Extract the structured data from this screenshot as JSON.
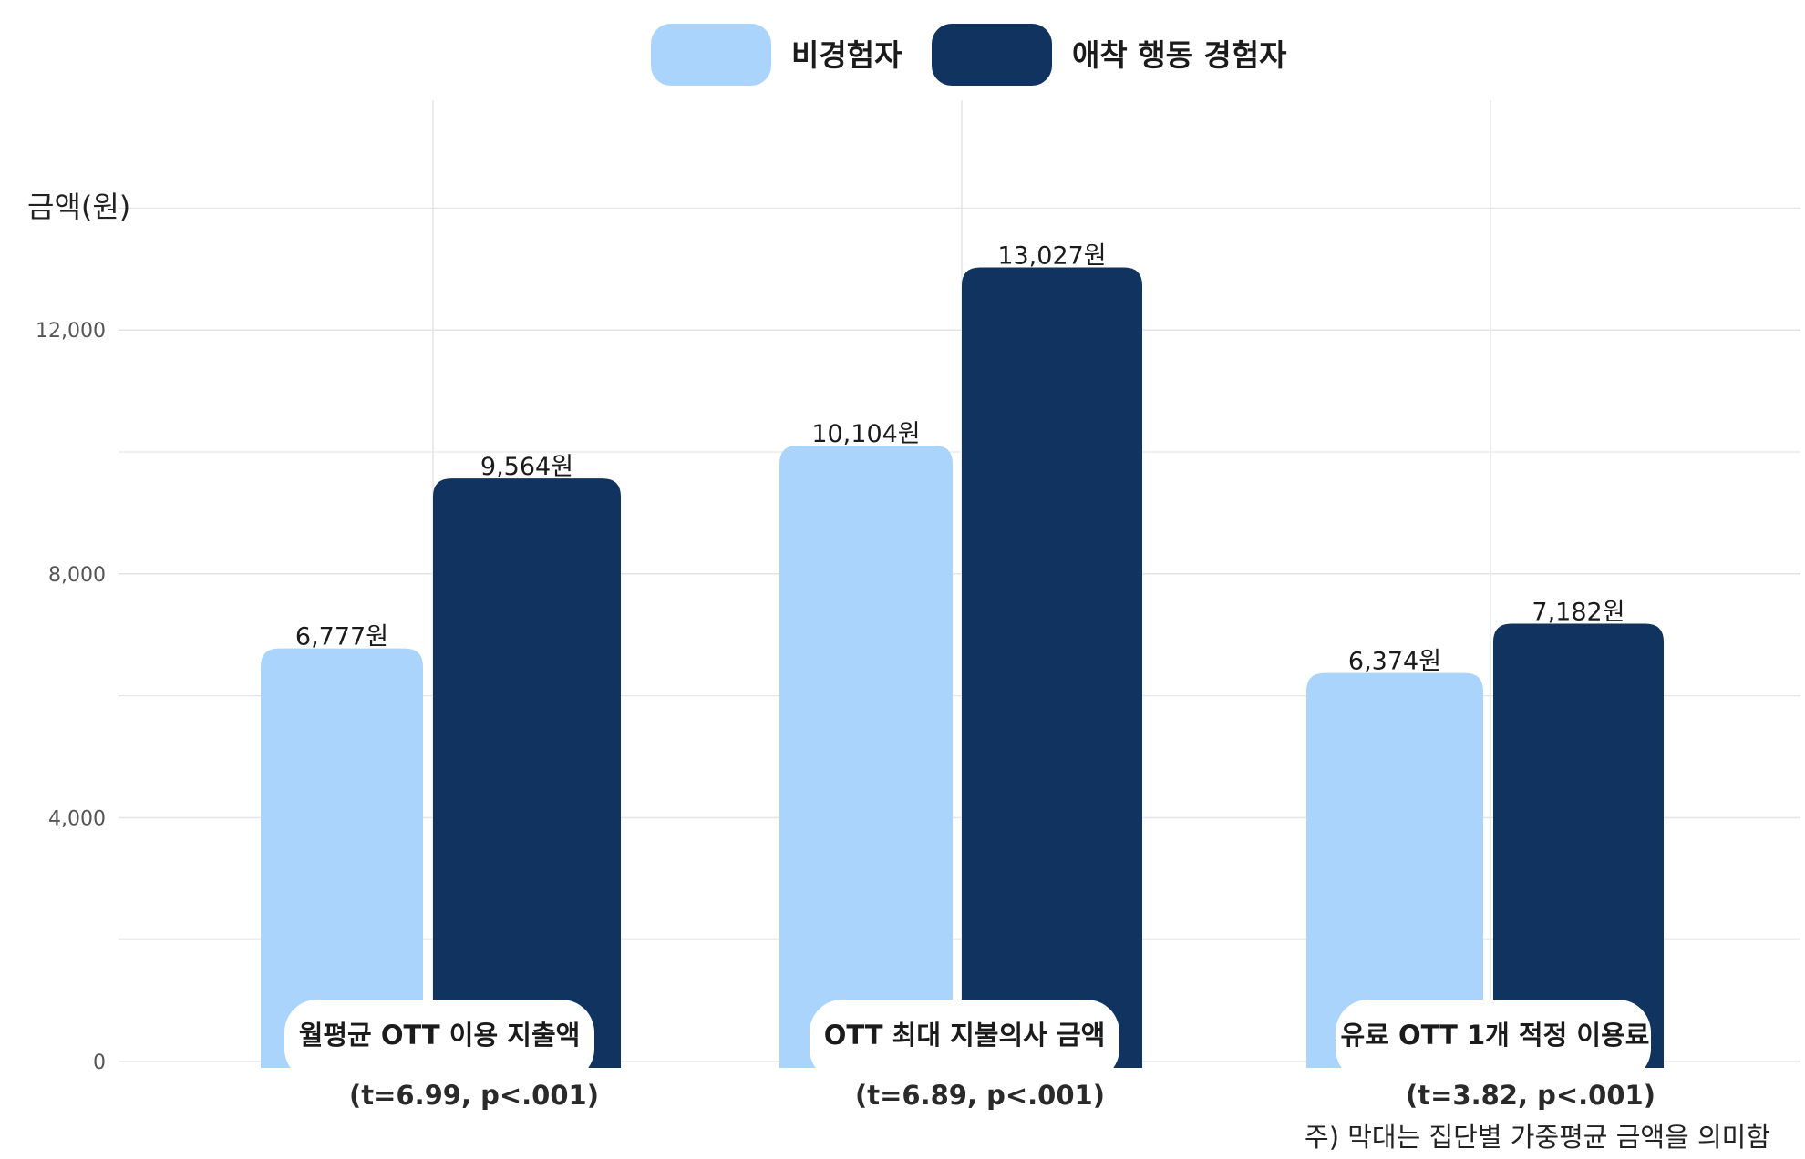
{
  "chart_data": {
    "type": "bar",
    "ylabel": "금액(원)",
    "ylim": [
      0,
      14500
    ],
    "yticks": [
      0,
      4000,
      8000,
      12000
    ],
    "ytick_labels": [
      "0",
      "4,000",
      "8,000",
      "12,000"
    ],
    "legend_position": "top-center",
    "grid": true,
    "categories": [
      "월평균 OTT 이용 지출액",
      "OTT 최대 지불의사 금액",
      "유료 OTT 1개 적정 이용료"
    ],
    "stats": [
      "(t=6.99, p<.001)",
      "(t=6.89, p<.001)",
      "(t=3.82, p<.001)"
    ],
    "series": [
      {
        "name": "비경험자",
        "color": "#aad4fb",
        "values": [
          6777,
          10104,
          6374
        ],
        "labels": [
          "6,777원",
          "10,104원",
          "6,374원"
        ]
      },
      {
        "name": "애착 행동 경험자",
        "color": "#10335f",
        "values": [
          9564,
          13027,
          7182
        ],
        "labels": [
          "9,564원",
          "13,027원",
          "7,182원"
        ]
      }
    ],
    "note": "주) 막대는 집단별 가중평균 금액을 의미함"
  }
}
